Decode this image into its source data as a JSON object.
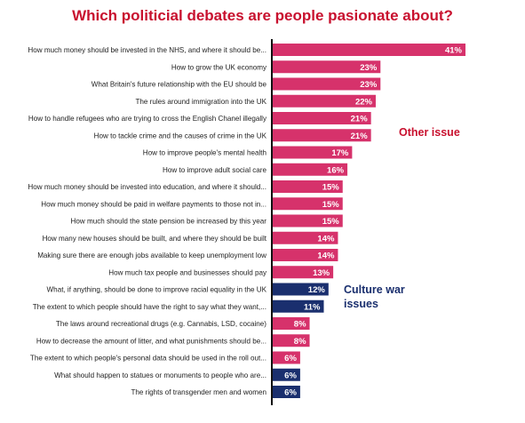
{
  "chart_data": {
    "type": "bar",
    "orientation": "horizontal",
    "title": "Which politicial debates are people pasionate about?",
    "value_suffix": "%",
    "categories": [
      "How much money should be invested in the NHS, and where it should be...",
      "How to grow the UK economy",
      "What Britain's future relationship with the EU should be",
      "The rules around immigration into the UK",
      "How to handle refugees who are trying to cross the English Chanel illegally",
      "How to tackle crime and the causes of crime in the UK",
      "How to improve people's mental health",
      "How to improve adult social care",
      "How much money should be invested into education, and where it should...",
      "How much money should be paid in welfare payments to those not in...",
      "How much should the state pension be increased by this year",
      "How many new houses should be built, and where they should be built",
      "Making sure there are enough jobs available to keep unemployment low",
      "How much tax people and businesses should pay",
      "What, if anything, should be done to improve racial equality in the UK",
      "The extent to which people should have the right to say what they want,...",
      "The laws around recreational drugs (e.g. Cannabis, LSD, cocaine)",
      "How to decrease the amount of litter, and what punishments should be...",
      "The extent to which people's personal data should be used in the roll out...",
      "What should happen to statues or monuments to people who are...",
      "The rights of transgender men and women"
    ],
    "values": [
      41,
      23,
      23,
      22,
      21,
      21,
      17,
      16,
      15,
      15,
      15,
      14,
      14,
      13,
      12,
      11,
      8,
      8,
      6,
      6,
      6
    ],
    "groups": [
      "other",
      "other",
      "other",
      "other",
      "other",
      "other",
      "other",
      "other",
      "other",
      "other",
      "other",
      "other",
      "other",
      "other",
      "culture",
      "culture",
      "other",
      "other",
      "other",
      "culture",
      "culture"
    ],
    "legend": [
      {
        "key": "other",
        "label": "Other issue",
        "color": "#d6326b"
      },
      {
        "key": "culture",
        "label": "Culture war issues",
        "color": "#1a2f6e"
      }
    ],
    "xlim": [
      0,
      41
    ],
    "grid": false
  }
}
